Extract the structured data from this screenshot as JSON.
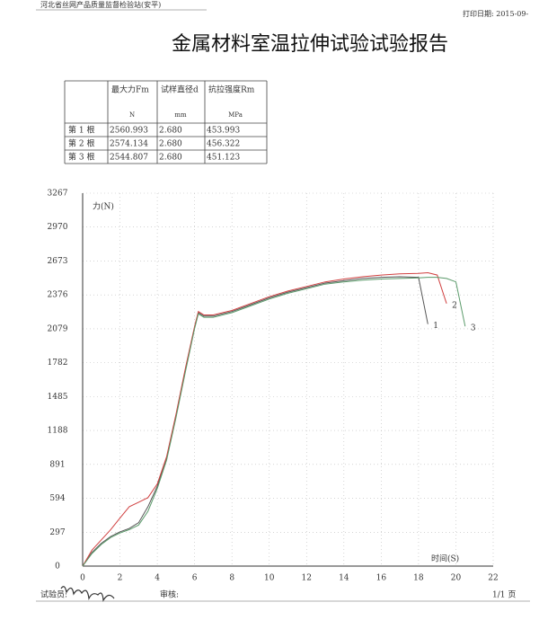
{
  "header": {
    "org": "河北省丝网产品质量监督检验站(安平)",
    "print_date": "打印日期: 2015-09-",
    "title": "金属材料室温拉伸试验试验报告"
  },
  "table": {
    "columns": [
      "最大力Fm",
      "试样直径d",
      "抗拉强度Rm"
    ],
    "units": [
      "N",
      "mm",
      "MPa"
    ],
    "rows": [
      [
        "第 1 根",
        "2560.993",
        "2.680",
        "453.993"
      ],
      [
        "第 2 根",
        "2574.134",
        "2.680",
        "456.322"
      ],
      [
        "第 3 根",
        "2544.807",
        "2.680",
        "451.123"
      ]
    ]
  },
  "chart_data": {
    "type": "line",
    "y_label": "力(N)",
    "x_label": "时间(S)",
    "x": [
      0,
      0.5,
      1,
      1.5,
      2,
      2.5,
      3,
      3.5,
      4,
      4.5,
      5,
      5.5,
      6,
      6.2,
      6.5,
      7,
      8,
      9,
      10,
      11,
      12,
      13,
      14,
      15,
      16,
      17,
      18,
      18.5,
      19,
      19.5,
      20,
      20.5
    ],
    "series": [
      {
        "name": "1",
        "color": "#555555",
        "values": [
          0,
          120,
          200,
          260,
          300,
          330,
          380,
          520,
          700,
          950,
          1320,
          1720,
          2090,
          2220,
          2190,
          2190,
          2230,
          2290,
          2350,
          2400,
          2440,
          2480,
          2500,
          2520,
          2530,
          2535,
          2530,
          2120,
          null,
          null,
          null,
          null
        ]
      },
      {
        "name": "2",
        "color": "#d04040",
        "values": [
          0,
          140,
          230,
          320,
          420,
          520,
          560,
          600,
          720,
          960,
          1330,
          1730,
          2100,
          2230,
          2200,
          2200,
          2240,
          2300,
          2360,
          2410,
          2450,
          2490,
          2515,
          2535,
          2550,
          2560,
          2565,
          2570,
          2550,
          2300,
          null,
          null
        ]
      },
      {
        "name": "3",
        "color": "#5a9a6a",
        "values": [
          0,
          110,
          190,
          250,
          290,
          320,
          360,
          480,
          680,
          930,
          1300,
          1700,
          2080,
          2210,
          2180,
          2180,
          2220,
          2280,
          2340,
          2390,
          2430,
          2470,
          2490,
          2505,
          2515,
          2520,
          2525,
          2530,
          2530,
          2520,
          2490,
          2100
        ]
      }
    ],
    "xlim": [
      0,
      22
    ],
    "ylim": [
      0,
      3267
    ],
    "xticks": [
      0,
      2,
      4,
      6,
      8,
      10,
      12,
      14,
      16,
      18,
      20,
      22
    ],
    "yticks": [
      0,
      297,
      594,
      891,
      1188,
      1485,
      1782,
      2079,
      2376,
      2673,
      2970,
      3267
    ],
    "grid": true
  },
  "footer": {
    "tester": "试验员:",
    "reviewer": "审核:",
    "page": "1/1 页"
  }
}
